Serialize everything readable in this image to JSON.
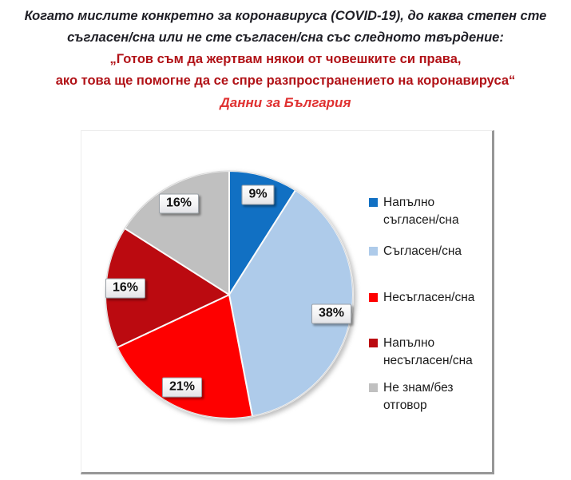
{
  "title": {
    "question_line1": "Когато мислите конкретно за коронавируса (COVID-19), до каква степен сте",
    "question_line2": "съгласен/сна или не сте съгласен/сна със следното твърдение:",
    "statement_line1": "„Готов съм да жертвам някои от човешките си права,",
    "statement_line2": "ако това ще помогне да се спре разпространението на коронавируса“",
    "subtitle": "Данни за България"
  },
  "colors": {
    "question_text": "#1f1f26",
    "statement_text": "#b11217",
    "subtitle_text": "#e03232"
  },
  "chart_data": {
    "type": "pie",
    "title": "Данни за България",
    "legend_position": "right",
    "start_angle_deg": 0,
    "direction": "clockwise",
    "slices": [
      {
        "label": "Напълно съгласен/сна",
        "value": 9,
        "display": "9%",
        "color": "#1170c3"
      },
      {
        "label": "Съгласен/сна",
        "value": 38,
        "display": "38%",
        "color": "#aecbea"
      },
      {
        "label": "Несъгласен/сна",
        "value": 21,
        "display": "21%",
        "color": "#fe0000"
      },
      {
        "label": "Напълно несъгласен/сна",
        "value": 16,
        "display": "16%",
        "color": "#bb0a10"
      },
      {
        "label": "Не знам/без отговор",
        "value": 16,
        "display": "16%",
        "color": "#c0c0c0"
      }
    ]
  }
}
